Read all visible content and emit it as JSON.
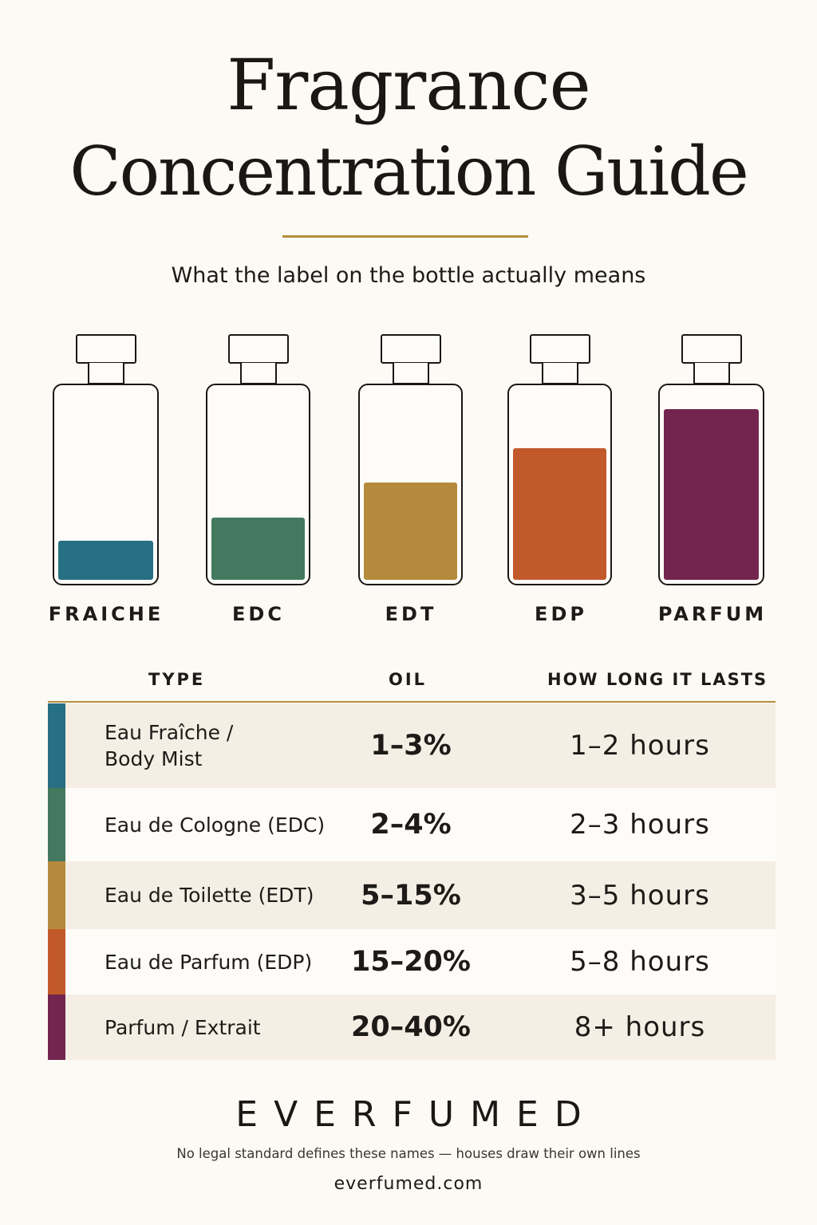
{
  "header": {
    "title_line1": "Fragrance",
    "title_line2": "Concentration Guide",
    "subtitle": "What the label on the bottle actually means"
  },
  "colors": {
    "fraiche": "#276f82",
    "edc": "#437a5f",
    "edt": "#b68a3c",
    "edp": "#c2592a",
    "parfum": "#73244f",
    "accent": "#b38e3c",
    "row_shade": "#f4eee4"
  },
  "bottles": [
    {
      "label": "FRAICHE",
      "fill_level": 0.2
    },
    {
      "label": "EDC",
      "fill_level": 0.32
    },
    {
      "label": "EDT",
      "fill_level": 0.5
    },
    {
      "label": "EDP",
      "fill_level": 0.68
    },
    {
      "label": "PARFUM",
      "fill_level": 0.88
    }
  ],
  "table": {
    "headers": {
      "type": "TYPE",
      "oil": "OIL",
      "lasts": "HOW LONG IT LASTS"
    },
    "rows": [
      {
        "type_line1": "Eau Fraîche /",
        "type_line2": "Body Mist",
        "oil": "1–3%",
        "lasts": "1–2 hours"
      },
      {
        "type_line1": "Eau de Cologne (EDC)",
        "type_line2": "",
        "oil": "2–4%",
        "lasts": "2–3 hours"
      },
      {
        "type_line1": "Eau de Toilette (EDT)",
        "type_line2": "",
        "oil": "5–15%",
        "lasts": "3–5 hours"
      },
      {
        "type_line1": "Eau de Parfum (EDP)",
        "type_line2": "",
        "oil": "15–20%",
        "lasts": "5–8 hours"
      },
      {
        "type_line1": "Parfum / Extrait",
        "type_line2": "",
        "oil": "20–40%",
        "lasts": "8+ hours"
      }
    ]
  },
  "footer": {
    "brand": "EVERFUMED",
    "disclaimer": "No legal standard defines these names — houses draw their own lines",
    "site": "everfumed.com"
  }
}
